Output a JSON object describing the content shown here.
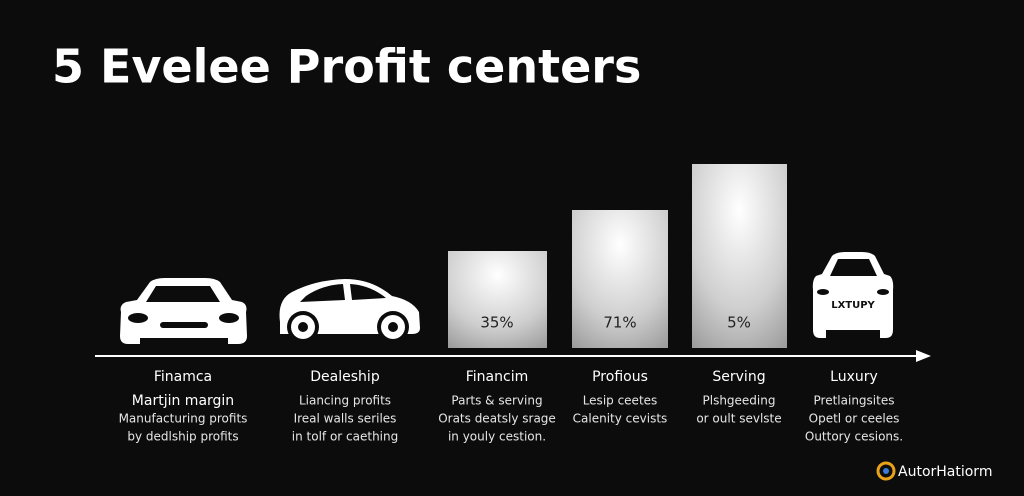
{
  "title": "5 Evelee Profit centers",
  "columns": [
    {
      "heading": "Finamca",
      "lines": [
        "Martjin margin",
        "Manufacturing profits",
        "by dedlship profits"
      ]
    },
    {
      "heading": "Dealeship",
      "lines": [
        "Liancing profits",
        "Ireal walls seriles",
        "in tolf or caething"
      ]
    },
    {
      "heading": "Financim",
      "bar_label": "35%",
      "lines": [
        "Parts & serving",
        "Orats deatsly srage",
        "in youly cestion."
      ]
    },
    {
      "heading": "Profious",
      "bar_label": "71%",
      "lines": [
        "Lesip ceetes",
        "Calenity cevists"
      ]
    },
    {
      "heading": "Serving",
      "bar_label": "5%",
      "lines": [
        "Plshgeeding",
        "or oult sevlste"
      ]
    },
    {
      "heading": "Luxury",
      "badge": "LXTUPY",
      "lines": [
        "Pretlaingsites",
        "Opetl or ceeles",
        "Outtory cesions."
      ]
    }
  ],
  "logo": "AutorHatiorm"
}
